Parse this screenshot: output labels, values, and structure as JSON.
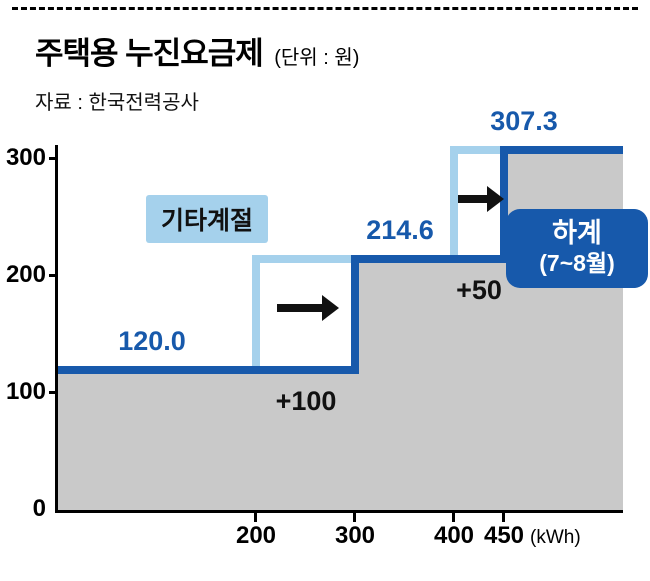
{
  "header": {
    "title": "주택용 누진요금제",
    "unit": "(단위 : 원)",
    "source": "자료 : 한국전력공사"
  },
  "colors": {
    "dark_blue": "#1759ab",
    "light_blue": "#a5d1ec",
    "gray": "#c9c9c9"
  },
  "chart_data": {
    "type": "step-area",
    "title": "주택용 누진요금제",
    "unit": "원",
    "xlabel": "(kWh)",
    "xlim": [
      0,
      570
    ],
    "ylim": [
      0,
      312
    ],
    "yticks": [
      0,
      100,
      200,
      300
    ],
    "xticks": [
      200,
      300,
      400,
      450
    ],
    "series": [
      {
        "name": "기타계절",
        "role": "other",
        "thresholds_kwh": [
          0,
          200,
          400
        ],
        "rates": [
          120.0,
          214.6,
          307.3
        ]
      },
      {
        "name": "하계(7~8월)",
        "role": "summer",
        "thresholds_kwh": [
          0,
          300,
          450
        ],
        "rates": [
          120.0,
          214.6,
          307.3
        ]
      }
    ],
    "rate_labels": [
      "120.0",
      "214.6",
      "307.3"
    ],
    "shift_annotations": [
      {
        "label": "+100",
        "from_kwh": 200,
        "to_kwh": 300
      },
      {
        "label": "+50",
        "from_kwh": 400,
        "to_kwh": 450
      }
    ],
    "legend": {
      "other_season": "기타계절",
      "summer_line1": "하계",
      "summer_line2": "(7~8월)"
    }
  }
}
